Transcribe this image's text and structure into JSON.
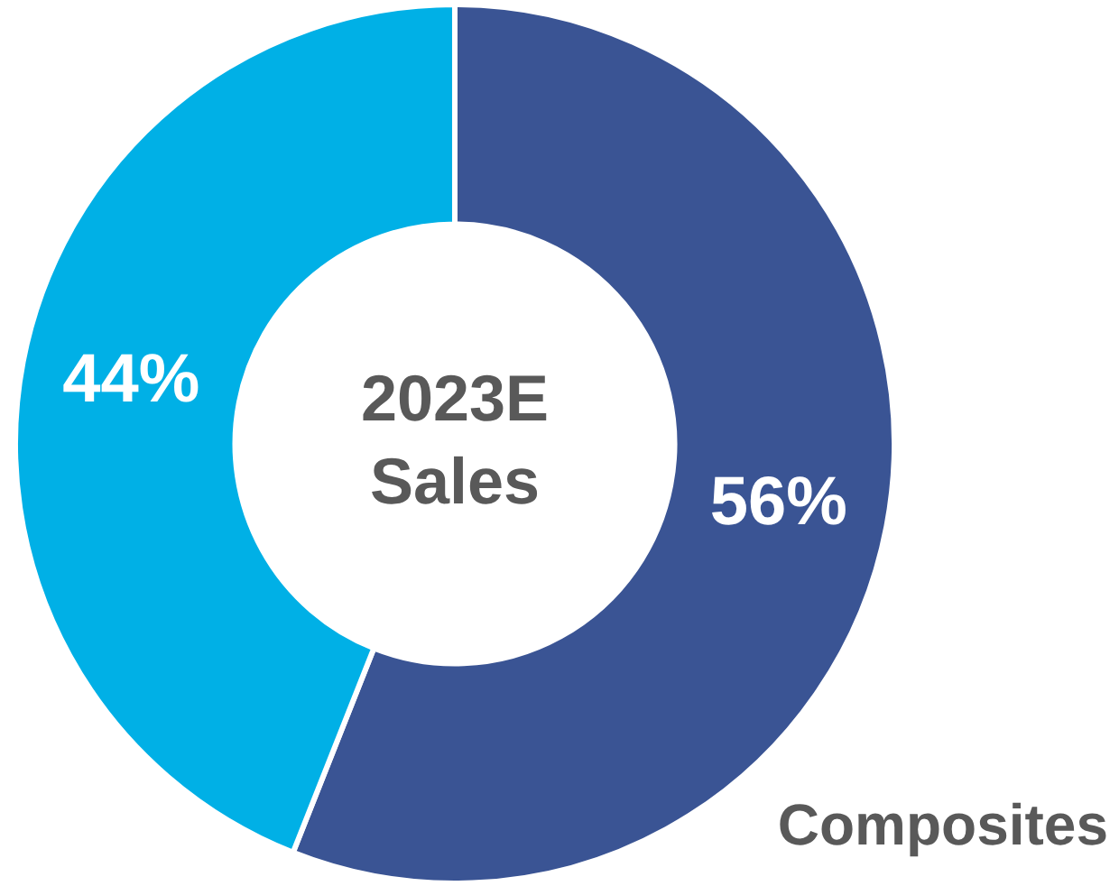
{
  "chart_data": {
    "type": "donut",
    "title": "2023E Sales",
    "categories": [
      "Composites",
      null
    ],
    "values": [
      56,
      44
    ],
    "colors": [
      "#3a5494",
      "#00b0e6"
    ],
    "value_labels": [
      "56%",
      "44%"
    ],
    "legend": false
  }
}
